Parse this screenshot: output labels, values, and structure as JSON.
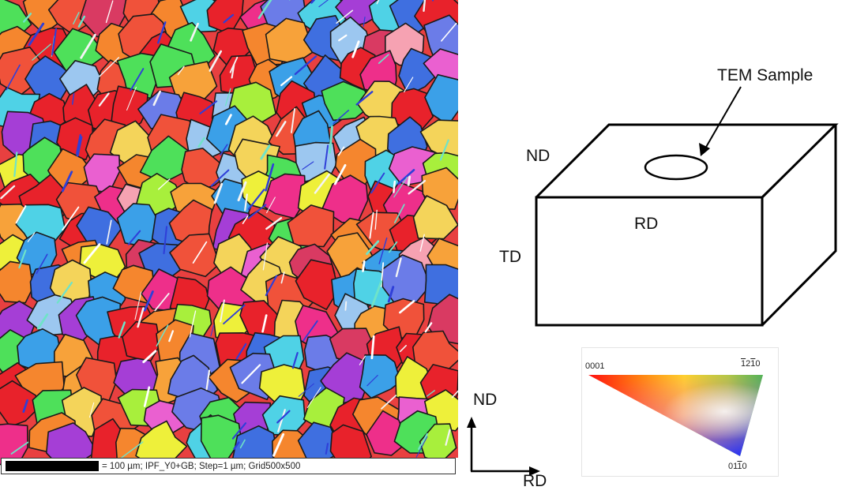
{
  "ebsd_map": {
    "scale_text": "= 100 µm; IPF_Y0+GB; Step=1 µm; Grid500x500"
  },
  "sample_diagram": {
    "tem_label": "TEM Sample",
    "nd_label": "ND",
    "rd_label": "RD",
    "td_label": "TD"
  },
  "axes": {
    "nd_label": "ND",
    "rd_label": "RD"
  },
  "ipf_key": {
    "corner_0001": "0001",
    "corner_1210": {
      "p1": "1",
      "p2": "2",
      "p3": "1",
      "p4": "0"
    },
    "corner_0110": {
      "p1": "01",
      "p2": "1",
      "p3": "0"
    }
  },
  "colors": {
    "grain_palette": [
      "#e8222b",
      "#f0523a",
      "#f5862e",
      "#f7a23a",
      "#d93a62",
      "#ee2f8a",
      "#a53ed6",
      "#6b7ce8",
      "#3f6fe0",
      "#9cc7f0",
      "#4fd2e6",
      "#4ee05a",
      "#a8ef3c",
      "#eef03a",
      "#f4d45a",
      "#f6a2b2",
      "#ea60d0",
      "#3ba0e8"
    ]
  }
}
